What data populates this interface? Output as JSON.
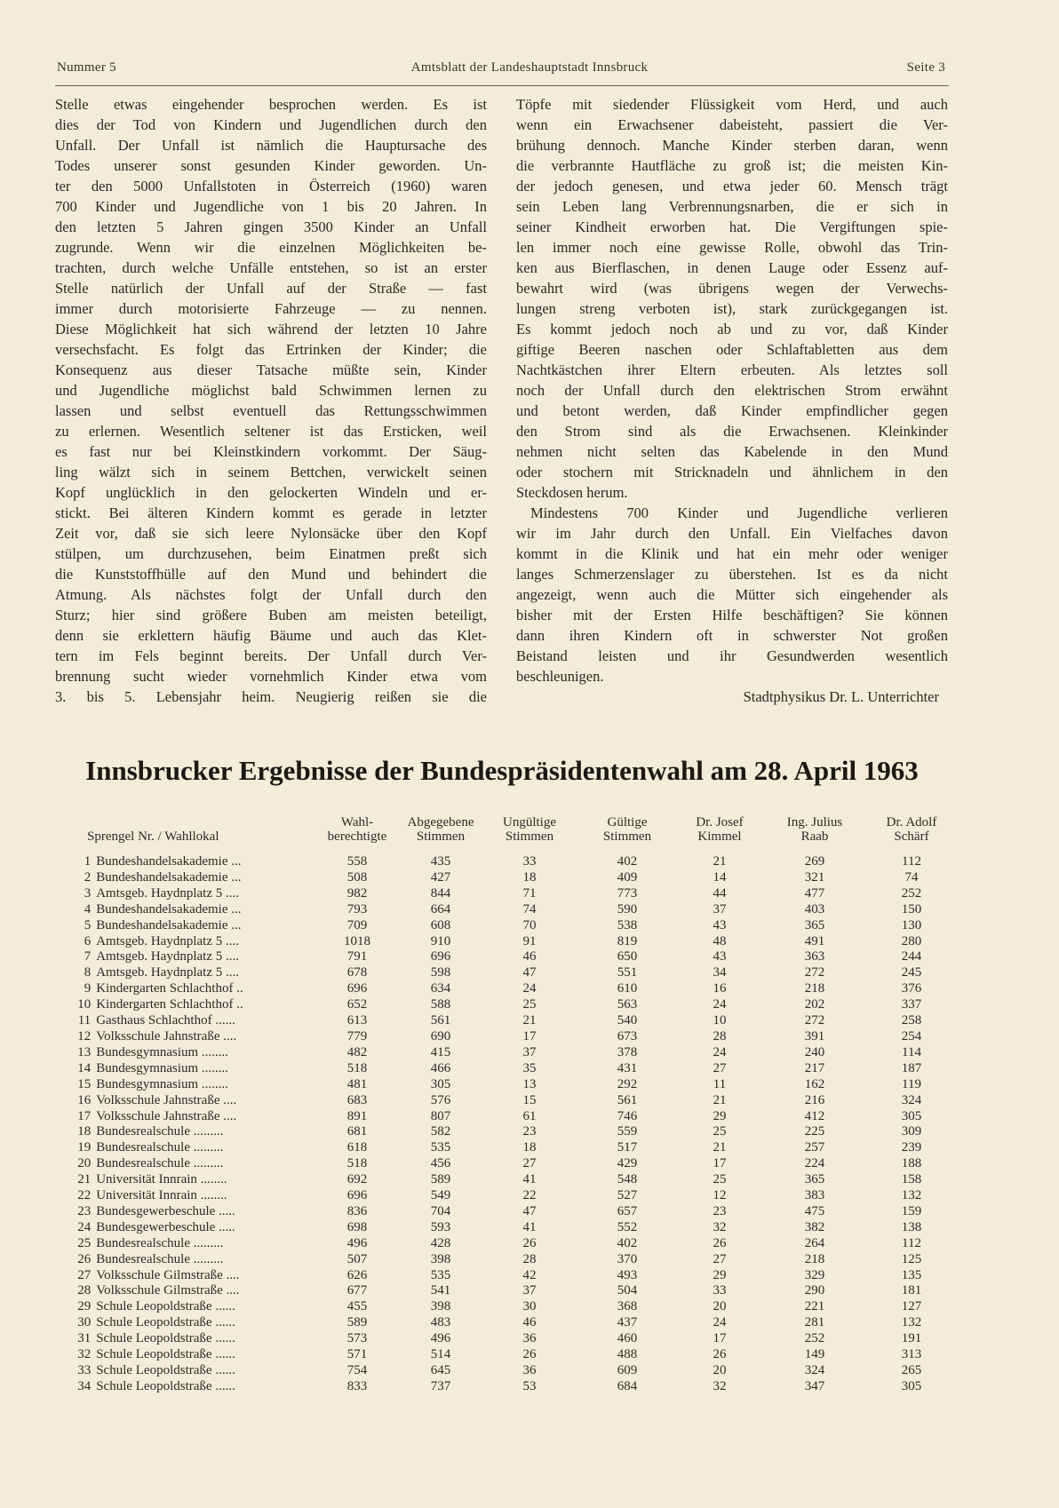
{
  "header": {
    "left": "Nummer 5",
    "center": "Amtsblatt der Landeshauptstadt Innsbruck",
    "right": "Seite 3"
  },
  "article": {
    "left_lines": [
      "Stelle etwas eingehender besprochen werden. Es ist",
      "dies der Tod von Kindern und Jugendlichen durch den",
      "Unfall. Der Unfall ist nämlich die Hauptursache des",
      "Todes unserer sonst gesunden Kinder geworden. Un-",
      "ter den 5000 Unfallstoten in Österreich (1960) waren",
      "700 Kinder und Jugendliche von 1 bis 20 Jahren. In",
      "den letzten 5 Jahren gingen 3500 Kinder an Unfall",
      "zugrunde. Wenn wir die einzelnen Möglichkeiten be-",
      "trachten, durch welche Unfälle entstehen, so ist an erster",
      "Stelle natürlich der Unfall auf der Straße — fast",
      "immer durch motorisierte Fahrzeuge — zu nennen.",
      "Diese Möglichkeit hat sich während der letzten 10 Jahre",
      "versechsfacht. Es folgt das Ertrinken der Kinder; die",
      "Konsequenz aus dieser Tatsache müßte sein, Kinder",
      "und Jugendliche möglichst bald Schwimmen lernen zu",
      "lassen und selbst eventuell das Rettungsschwimmen",
      "zu erlernen. Wesentlich seltener ist das Ersticken, weil",
      "es fast nur bei Kleinstkindern vorkommt. Der Säug-",
      "ling wälzt sich in seinem Bettchen, verwickelt seinen",
      "Kopf unglücklich in den gelockerten Windeln und er-",
      "stickt. Bei älteren Kindern kommt es gerade in letzter",
      "Zeit vor, daß sie sich leere Nylonsäcke über den Kopf",
      "stülpen, um durchzusehen, beim Einatmen preßt sich",
      "die Kunststoffhülle auf den Mund und behindert die",
      "Atmung. Als nächstes folgt der Unfall durch den",
      "Sturz; hier sind größere Buben am meisten beteiligt,",
      "denn sie erklettern häufig Bäume und auch das Klet-",
      "tern im Fels beginnt bereits. Der Unfall durch Ver-",
      "brennung sucht wieder vornehmlich Kinder etwa vom",
      "3. bis 5. Lebensjahr heim. Neugierig reißen sie die"
    ],
    "right_lines": [
      "Töpfe mit siedender Flüssigkeit vom Herd, und auch",
      "wenn ein Erwachsener dabeisteht, passiert die Ver-",
      "brühung dennoch. Manche Kinder sterben daran, wenn",
      "die verbrannte Hautfläche zu groß ist; die meisten Kin-",
      "der jedoch genesen, und etwa jeder 60. Mensch trägt",
      "sein Leben lang Verbrennungsnarben, die er sich in",
      "seiner Kindheit erworben hat. Die Vergiftungen spie-",
      "len immer noch eine gewisse Rolle, obwohl das Trin-",
      "ken aus Bierflaschen, in denen Lauge oder Essenz auf-",
      "bewahrt wird (was übrigens wegen der Verwechs-",
      "lungen streng verboten ist), stark zurückgegangen ist.",
      "Es kommt jedoch noch ab und zu vor, daß Kinder",
      "giftige Beeren naschen oder Schlaftabletten aus dem",
      "Nachtkästchen ihrer Eltern erbeuten. Als letztes soll",
      "noch der Unfall durch den elektrischen Strom erwähnt",
      "und betont werden, daß Kinder empfindlicher gegen",
      "den Strom sind als die Erwachsenen. Kleinkinder",
      "nehmen nicht selten das Kabelende in den Mund",
      "oder stochern mit Stricknadeln und ähnlichem in den",
      "Steckdosen herum.",
      "Mindestens 700 Kinder und Jugendliche verlieren",
      "wir im Jahr durch den Unfall. Ein Vielfaches davon",
      "kommt in die Klinik und hat ein mehr oder weniger",
      "langes Schmerzenslager zu überstehen. Ist es da nicht",
      "angezeigt, wenn auch die Mütter sich eingehender als",
      "bisher mit der Ersten Hilfe beschäftigen? Sie können",
      "dann ihren Kindern oft in schwerster Not großen",
      "Beistand leisten und ihr Gesundwerden wesentlich",
      "beschleunigen."
    ],
    "signature": "Stadtphysikus Dr. L. Unterrichter"
  },
  "results": {
    "title": "Innsbrucker Ergebnisse der Bundespräsidentenwahl am 28. April 1963",
    "columns": [
      [
        "Sprengel Nr. / Wahllokal"
      ],
      [
        "Wahl-",
        "berechtigte"
      ],
      [
        "Abgegebene",
        "Stimmen"
      ],
      [
        "Ungültige",
        "Stimmen"
      ],
      [
        "Gültige",
        "Stimmen"
      ],
      [
        "Dr. Josef",
        "Kimmel"
      ],
      [
        "Ing. Julius",
        "Raab"
      ],
      [
        "Dr. Adolf",
        "Schärf"
      ]
    ],
    "rows": [
      [
        "1",
        "Bundeshandelsakademie ...",
        "558",
        "435",
        "33",
        "402",
        "21",
        "269",
        "112"
      ],
      [
        "2",
        "Bundeshandelsakademie ...",
        "508",
        "427",
        "18",
        "409",
        "14",
        "321",
        "74"
      ],
      [
        "3",
        "Amtsgeb. Haydnplatz 5 ....",
        "982",
        "844",
        "71",
        "773",
        "44",
        "477",
        "252"
      ],
      [
        "4",
        "Bundeshandelsakademie ...",
        "793",
        "664",
        "74",
        "590",
        "37",
        "403",
        "150"
      ],
      [
        "5",
        "Bundeshandelsakademie ...",
        "709",
        "608",
        "70",
        "538",
        "43",
        "365",
        "130"
      ],
      [
        "6",
        "Amtsgeb. Haydnplatz 5 ....",
        "1018",
        "910",
        "91",
        "819",
        "48",
        "491",
        "280"
      ],
      [
        "7",
        "Amtsgeb. Haydnplatz 5 ....",
        "791",
        "696",
        "46",
        "650",
        "43",
        "363",
        "244"
      ],
      [
        "8",
        "Amtsgeb. Haydnplatz 5 ....",
        "678",
        "598",
        "47",
        "551",
        "34",
        "272",
        "245"
      ],
      [
        "9",
        "Kindergarten Schlachthof ..",
        "696",
        "634",
        "24",
        "610",
        "16",
        "218",
        "376"
      ],
      [
        "10",
        "Kindergarten Schlachthof ..",
        "652",
        "588",
        "25",
        "563",
        "24",
        "202",
        "337"
      ],
      [
        "11",
        "Gasthaus Schlachthof ......",
        "613",
        "561",
        "21",
        "540",
        "10",
        "272",
        "258"
      ],
      [
        "12",
        "Volksschule Jahnstraße ....",
        "779",
        "690",
        "17",
        "673",
        "28",
        "391",
        "254"
      ],
      [
        "13",
        "Bundesgymnasium ........",
        "482",
        "415",
        "37",
        "378",
        "24",
        "240",
        "114"
      ],
      [
        "14",
        "Bundesgymnasium ........",
        "518",
        "466",
        "35",
        "431",
        "27",
        "217",
        "187"
      ],
      [
        "15",
        "Bundesgymnasium ........",
        "481",
        "305",
        "13",
        "292",
        "11",
        "162",
        "119"
      ],
      [
        "16",
        "Volksschule Jahnstraße ....",
        "683",
        "576",
        "15",
        "561",
        "21",
        "216",
        "324"
      ],
      [
        "17",
        "Volksschule Jahnstraße ....",
        "891",
        "807",
        "61",
        "746",
        "29",
        "412",
        "305"
      ],
      [
        "18",
        "Bundesrealschule .........",
        "681",
        "582",
        "23",
        "559",
        "25",
        "225",
        "309"
      ],
      [
        "19",
        "Bundesrealschule .........",
        "618",
        "535",
        "18",
        "517",
        "21",
        "257",
        "239"
      ],
      [
        "20",
        "Bundesrealschule .........",
        "518",
        "456",
        "27",
        "429",
        "17",
        "224",
        "188"
      ],
      [
        "21",
        "Universität Innrain ........",
        "692",
        "589",
        "41",
        "548",
        "25",
        "365",
        "158"
      ],
      [
        "22",
        "Universität Innrain ........",
        "696",
        "549",
        "22",
        "527",
        "12",
        "383",
        "132"
      ],
      [
        "23",
        "Bundesgewerbeschule .....",
        "836",
        "704",
        "47",
        "657",
        "23",
        "475",
        "159"
      ],
      [
        "24",
        "Bundesgewerbeschule .....",
        "698",
        "593",
        "41",
        "552",
        "32",
        "382",
        "138"
      ],
      [
        "25",
        "Bundesrealschule .........",
        "496",
        "428",
        "26",
        "402",
        "26",
        "264",
        "112"
      ],
      [
        "26",
        "Bundesrealschule .........",
        "507",
        "398",
        "28",
        "370",
        "27",
        "218",
        "125"
      ],
      [
        "27",
        "Volksschule Gilmstraße ....",
        "626",
        "535",
        "42",
        "493",
        "29",
        "329",
        "135"
      ],
      [
        "28",
        "Volksschule Gilmstraße ....",
        "677",
        "541",
        "37",
        "504",
        "33",
        "290",
        "181"
      ],
      [
        "29",
        "Schule Leopoldstraße ......",
        "455",
        "398",
        "30",
        "368",
        "20",
        "221",
        "127"
      ],
      [
        "30",
        "Schule Leopoldstraße ......",
        "589",
        "483",
        "46",
        "437",
        "24",
        "281",
        "132"
      ],
      [
        "31",
        "Schule Leopoldstraße ......",
        "573",
        "496",
        "36",
        "460",
        "17",
        "252",
        "191"
      ],
      [
        "32",
        "Schule Leopoldstraße ......",
        "571",
        "514",
        "26",
        "488",
        "26",
        "149",
        "313"
      ],
      [
        "33",
        "Schule Leopoldstraße ......",
        "754",
        "645",
        "36",
        "609",
        "20",
        "324",
        "265"
      ],
      [
        "34",
        "Schule Leopoldstraße ......",
        "833",
        "737",
        "53",
        "684",
        "32",
        "347",
        "305"
      ]
    ]
  }
}
